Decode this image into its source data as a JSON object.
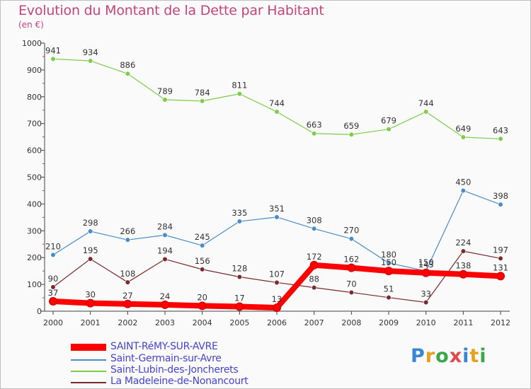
{
  "title": "Evolution du Montant de la Dette par Habitant",
  "subtitle": "(en €)",
  "logo": "Proxiti",
  "chart_data": {
    "type": "line",
    "x": [
      "2000",
      "2001",
      "2002",
      "2003",
      "2004",
      "2005",
      "2006",
      "2007",
      "2008",
      "2009",
      "2010",
      "2011",
      "2012"
    ],
    "ylim": [
      0,
      1000
    ],
    "yticks": [
      0,
      100,
      200,
      300,
      400,
      500,
      600,
      700,
      800,
      900,
      1000
    ],
    "grid": false,
    "legend_position": "bottom-left",
    "series": [
      {
        "name": "SAINT-RéMY-SUR-AVRE",
        "color": "#ff0000",
        "values": [
          37,
          30,
          27,
          24,
          20,
          17,
          13,
          172,
          162,
          150,
          143,
          138,
          131
        ]
      },
      {
        "name": "Saint-Germain-sur-Avre",
        "color": "#4a8cc8",
        "values": [
          210,
          298,
          266,
          284,
          245,
          335,
          351,
          308,
          270,
          180,
          150,
          450,
          398
        ]
      },
      {
        "name": "Saint-Lubin-des-Joncherets",
        "color": "#7dcc4a",
        "values": [
          941,
          934,
          886,
          789,
          784,
          811,
          744,
          663,
          659,
          679,
          744,
          649,
          643
        ]
      },
      {
        "name": "La Madeleine-de-Nonancourt",
        "color": "#7a2a2a",
        "values": [
          90,
          195,
          108,
          194,
          156,
          128,
          107,
          88,
          70,
          51,
          33,
          224,
          197
        ]
      }
    ]
  }
}
